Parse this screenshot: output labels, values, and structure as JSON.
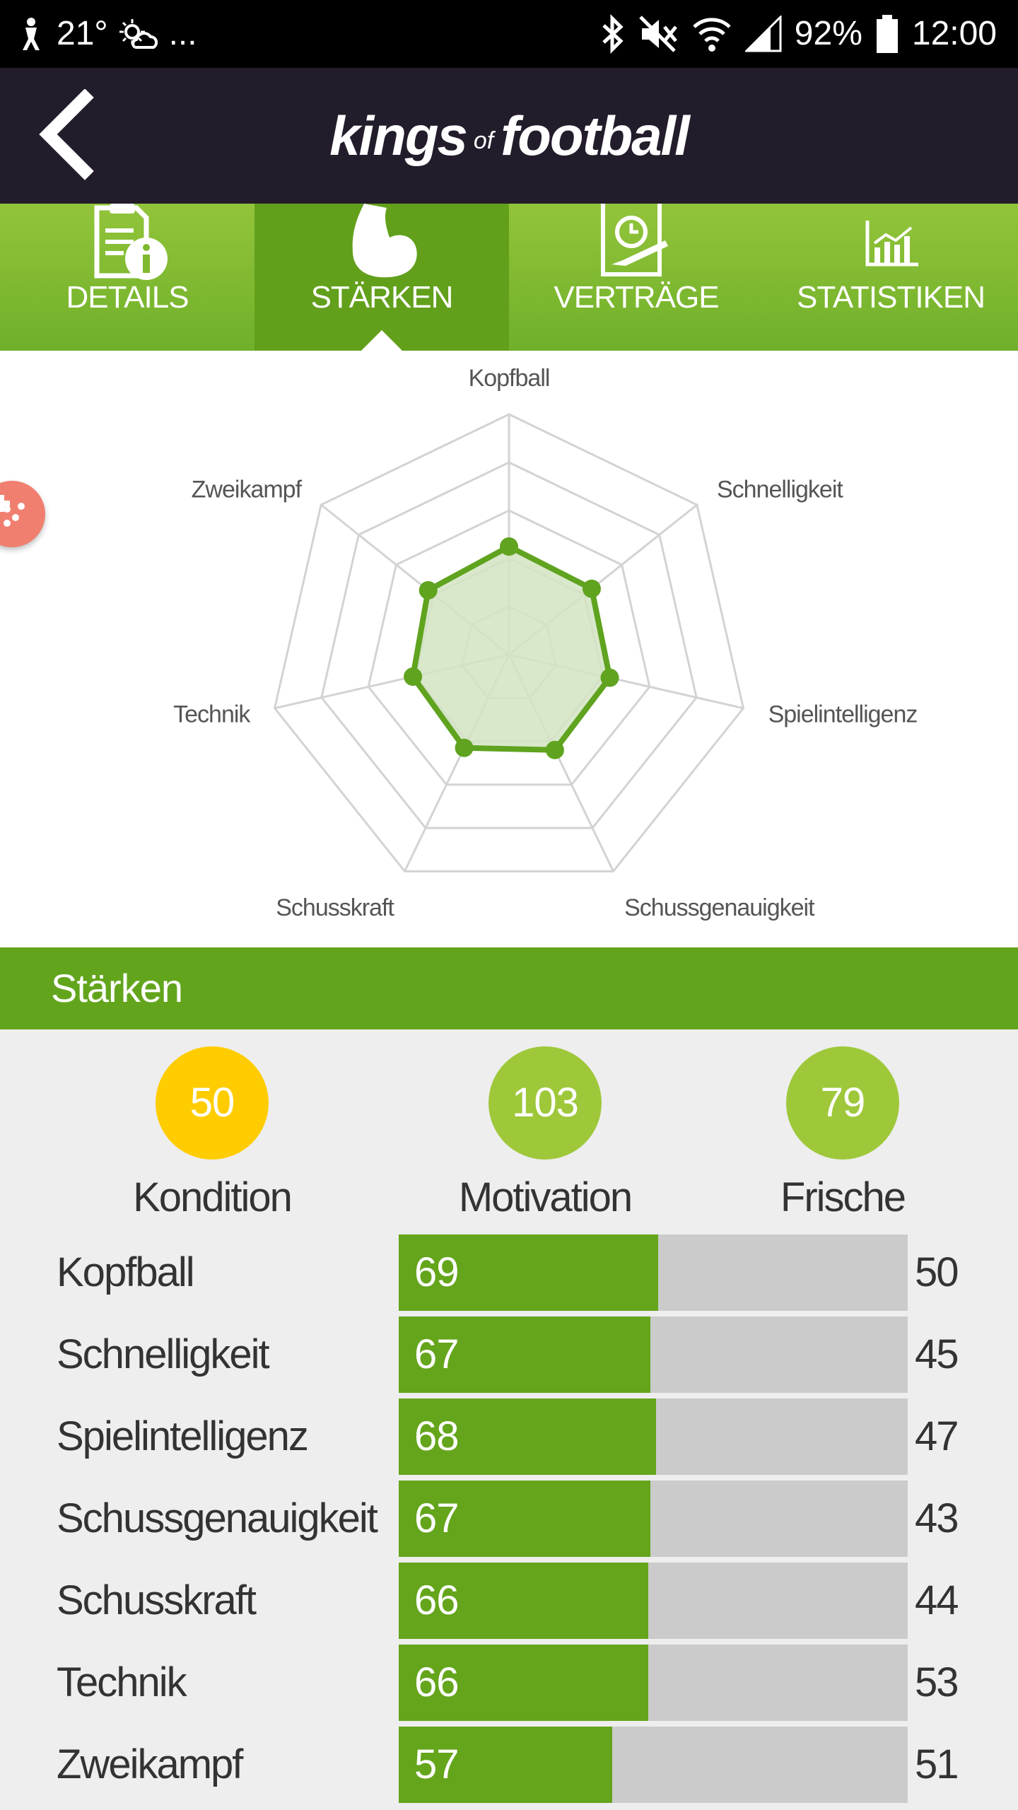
{
  "status_bar": {
    "temperature": "21°",
    "overflow": "...",
    "battery": "92%",
    "time": "12:00",
    "icons": [
      "person-icon",
      "weather-icon",
      "bluetooth-icon",
      "mute-icon",
      "wifi-icon",
      "signal-icon",
      "battery-icon"
    ]
  },
  "header": {
    "logo_part1": "kings",
    "logo_part2": "of",
    "logo_part3": "football"
  },
  "tabs": [
    {
      "label": "DETAILS",
      "icon": "document-info-icon",
      "active": false
    },
    {
      "label": "STÄRKEN",
      "icon": "biceps-icon",
      "active": true
    },
    {
      "label": "VERTRÄGE",
      "icon": "contract-icon",
      "active": false
    },
    {
      "label": "STATISTIKEN",
      "icon": "chart-icon",
      "active": false
    }
  ],
  "chart_data": {
    "type": "radar",
    "axes": [
      "Kopfball",
      "Schnelligkeit",
      "Spielintelligenz",
      "Schussgenauigkeit",
      "Schusskraft",
      "Technik",
      "Zweikampf"
    ],
    "values": [
      45,
      44,
      43,
      44,
      43,
      41,
      43
    ],
    "rmax": 100,
    "rings": 5,
    "grid": true,
    "colors": {
      "line": "#5fa31f",
      "fill": "#d2e4c2",
      "grid": "#d3d3d3"
    }
  },
  "section": {
    "title": "Stärken"
  },
  "stats": [
    {
      "value": "50",
      "label": "Kondition",
      "color": "#ffcc00"
    },
    {
      "value": "103",
      "label": "Motivation",
      "color": "#9ec83a"
    },
    {
      "value": "79",
      "label": "Frische",
      "color": "#9ec83a"
    }
  ],
  "strengths": [
    {
      "name": "Kopfball",
      "value": "69",
      "compare": "50",
      "fill_fraction": 0.51
    },
    {
      "name": "Schnelligkeit",
      "value": "67",
      "compare": "45",
      "fill_fraction": 0.495
    },
    {
      "name": "Spielintelligenz",
      "value": "68",
      "compare": "47",
      "fill_fraction": 0.505
    },
    {
      "name": "Schussgenauigkeit",
      "value": "67",
      "compare": "43",
      "fill_fraction": 0.495
    },
    {
      "name": "Schusskraft",
      "value": "66",
      "compare": "44",
      "fill_fraction": 0.49
    },
    {
      "name": "Technik",
      "value": "66",
      "compare": "53",
      "fill_fraction": 0.49
    },
    {
      "name": "Zweikampf",
      "value": "57",
      "compare": "51",
      "fill_fraction": 0.42
    }
  ]
}
